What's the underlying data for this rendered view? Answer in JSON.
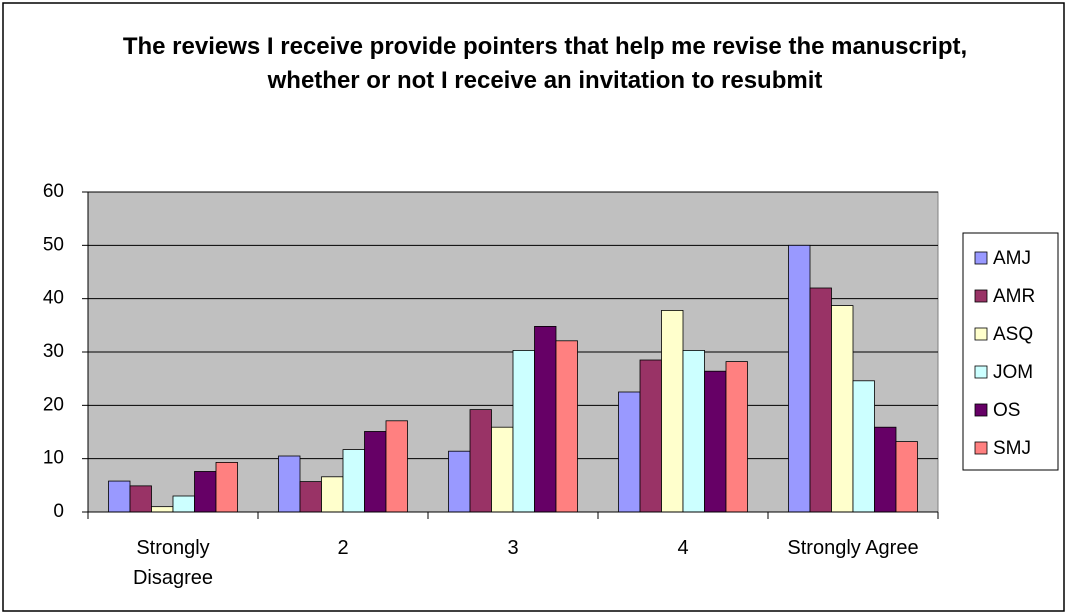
{
  "chart_data": {
    "type": "bar",
    "title": "The reviews I receive provide pointers that help me revise the manuscript, whether or not I receive an invitation to resubmit",
    "categories": [
      "Strongly Disagree",
      "2",
      "3",
      "4",
      "Strongly Agree"
    ],
    "series": [
      {
        "name": "AMJ",
        "color": "#9999ff",
        "values": [
          5.8,
          10.5,
          11.4,
          22.5,
          50
        ]
      },
      {
        "name": "AMR",
        "color": "#993366",
        "values": [
          4.9,
          5.7,
          19.2,
          28.5,
          42
        ]
      },
      {
        "name": "ASQ",
        "color": "#ffffcc",
        "values": [
          1,
          6.6,
          15.9,
          37.8,
          38.7
        ]
      },
      {
        "name": "JOM",
        "color": "#ccffff",
        "values": [
          3,
          11.7,
          30.3,
          30.3,
          24.6
        ]
      },
      {
        "name": "OS",
        "color": "#660066",
        "values": [
          7.6,
          15.1,
          34.8,
          26.4,
          15.9
        ]
      },
      {
        "name": "SMJ",
        "color": "#ff8080",
        "values": [
          9.3,
          17.1,
          32.1,
          28.2,
          13.2
        ]
      }
    ],
    "ylim": [
      0,
      60
    ],
    "yticks": [
      0,
      10,
      20,
      30,
      40,
      50,
      60
    ],
    "grid": true,
    "legend": "right"
  }
}
